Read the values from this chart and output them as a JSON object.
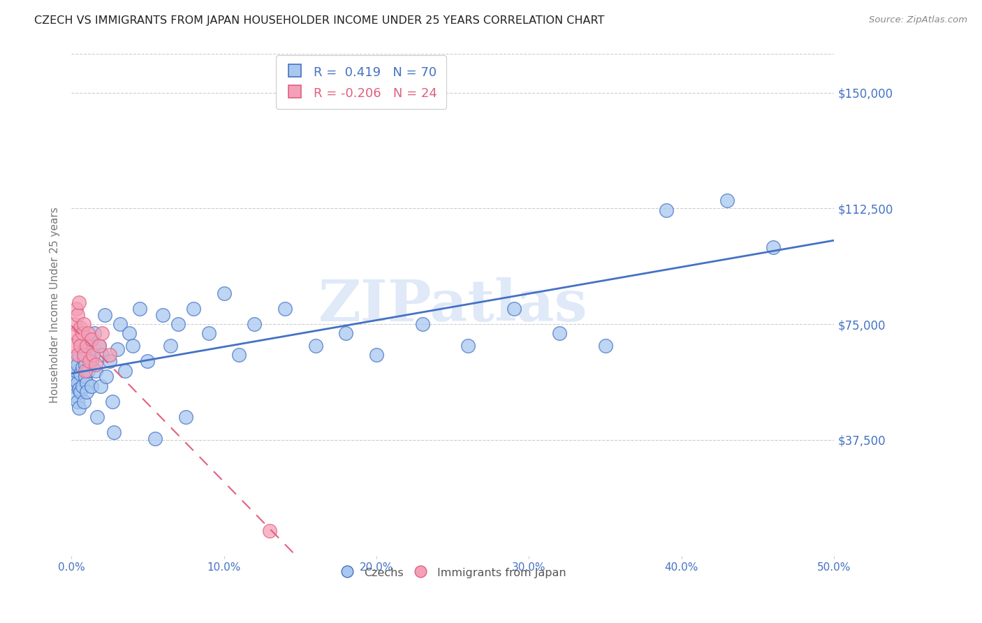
{
  "title": "CZECH VS IMMIGRANTS FROM JAPAN HOUSEHOLDER INCOME UNDER 25 YEARS CORRELATION CHART",
  "source": "Source: ZipAtlas.com",
  "xlabel_ticks": [
    "0.0%",
    "10.0%",
    "20.0%",
    "30.0%",
    "40.0%",
    "50.0%"
  ],
  "xlabel_tick_vals": [
    0.0,
    0.1,
    0.2,
    0.3,
    0.4,
    0.5
  ],
  "ylabel": "Householder Income Under 25 years",
  "ylabel_ticks": [
    "$37,500",
    "$75,000",
    "$112,500",
    "$150,000"
  ],
  "ylabel_tick_vals": [
    37500,
    75000,
    112500,
    150000
  ],
  "xlim": [
    0.0,
    0.5
  ],
  "ylim": [
    0,
    162500
  ],
  "legend_czechs_r": "0.419",
  "legend_czechs_n": "70",
  "legend_japan_r": "-0.206",
  "legend_japan_n": "24",
  "color_czechs": "#a8c8f0",
  "color_japan": "#f4a0b8",
  "color_czechs_line": "#4472c4",
  "color_japan_line": "#e06080",
  "color_axis_labels": "#4472c4",
  "czechs_x": [
    0.001,
    0.002,
    0.002,
    0.003,
    0.003,
    0.003,
    0.004,
    0.004,
    0.004,
    0.005,
    0.005,
    0.005,
    0.006,
    0.006,
    0.007,
    0.007,
    0.007,
    0.008,
    0.008,
    0.009,
    0.009,
    0.01,
    0.01,
    0.01,
    0.011,
    0.011,
    0.012,
    0.013,
    0.013,
    0.014,
    0.015,
    0.016,
    0.017,
    0.018,
    0.019,
    0.02,
    0.022,
    0.023,
    0.025,
    0.027,
    0.028,
    0.03,
    0.032,
    0.035,
    0.038,
    0.04,
    0.045,
    0.05,
    0.055,
    0.06,
    0.065,
    0.07,
    0.075,
    0.08,
    0.09,
    0.1,
    0.11,
    0.12,
    0.14,
    0.16,
    0.18,
    0.2,
    0.23,
    0.26,
    0.29,
    0.32,
    0.35,
    0.39,
    0.43,
    0.46
  ],
  "czechs_y": [
    55000,
    58000,
    52000,
    57000,
    60000,
    63000,
    50000,
    56000,
    62000,
    48000,
    54000,
    65000,
    59000,
    53000,
    61000,
    55000,
    67000,
    50000,
    64000,
    58000,
    62000,
    56000,
    68000,
    53000,
    65000,
    60000,
    70000,
    55000,
    63000,
    67000,
    72000,
    60000,
    45000,
    68000,
    55000,
    65000,
    78000,
    58000,
    63000,
    50000,
    40000,
    67000,
    75000,
    60000,
    72000,
    68000,
    80000,
    63000,
    38000,
    78000,
    68000,
    75000,
    45000,
    80000,
    72000,
    85000,
    65000,
    75000,
    80000,
    68000,
    72000,
    65000,
    75000,
    68000,
    80000,
    72000,
    68000,
    112000,
    115000,
    100000
  ],
  "japan_x": [
    0.001,
    0.002,
    0.003,
    0.003,
    0.004,
    0.004,
    0.005,
    0.005,
    0.006,
    0.006,
    0.007,
    0.008,
    0.008,
    0.009,
    0.01,
    0.011,
    0.012,
    0.013,
    0.014,
    0.016,
    0.018,
    0.02,
    0.025,
    0.13
  ],
  "japan_y": [
    68000,
    75000,
    72000,
    80000,
    65000,
    78000,
    70000,
    82000,
    74000,
    68000,
    72000,
    65000,
    75000,
    60000,
    68000,
    72000,
    63000,
    70000,
    65000,
    62000,
    68000,
    72000,
    65000,
    8000
  ]
}
